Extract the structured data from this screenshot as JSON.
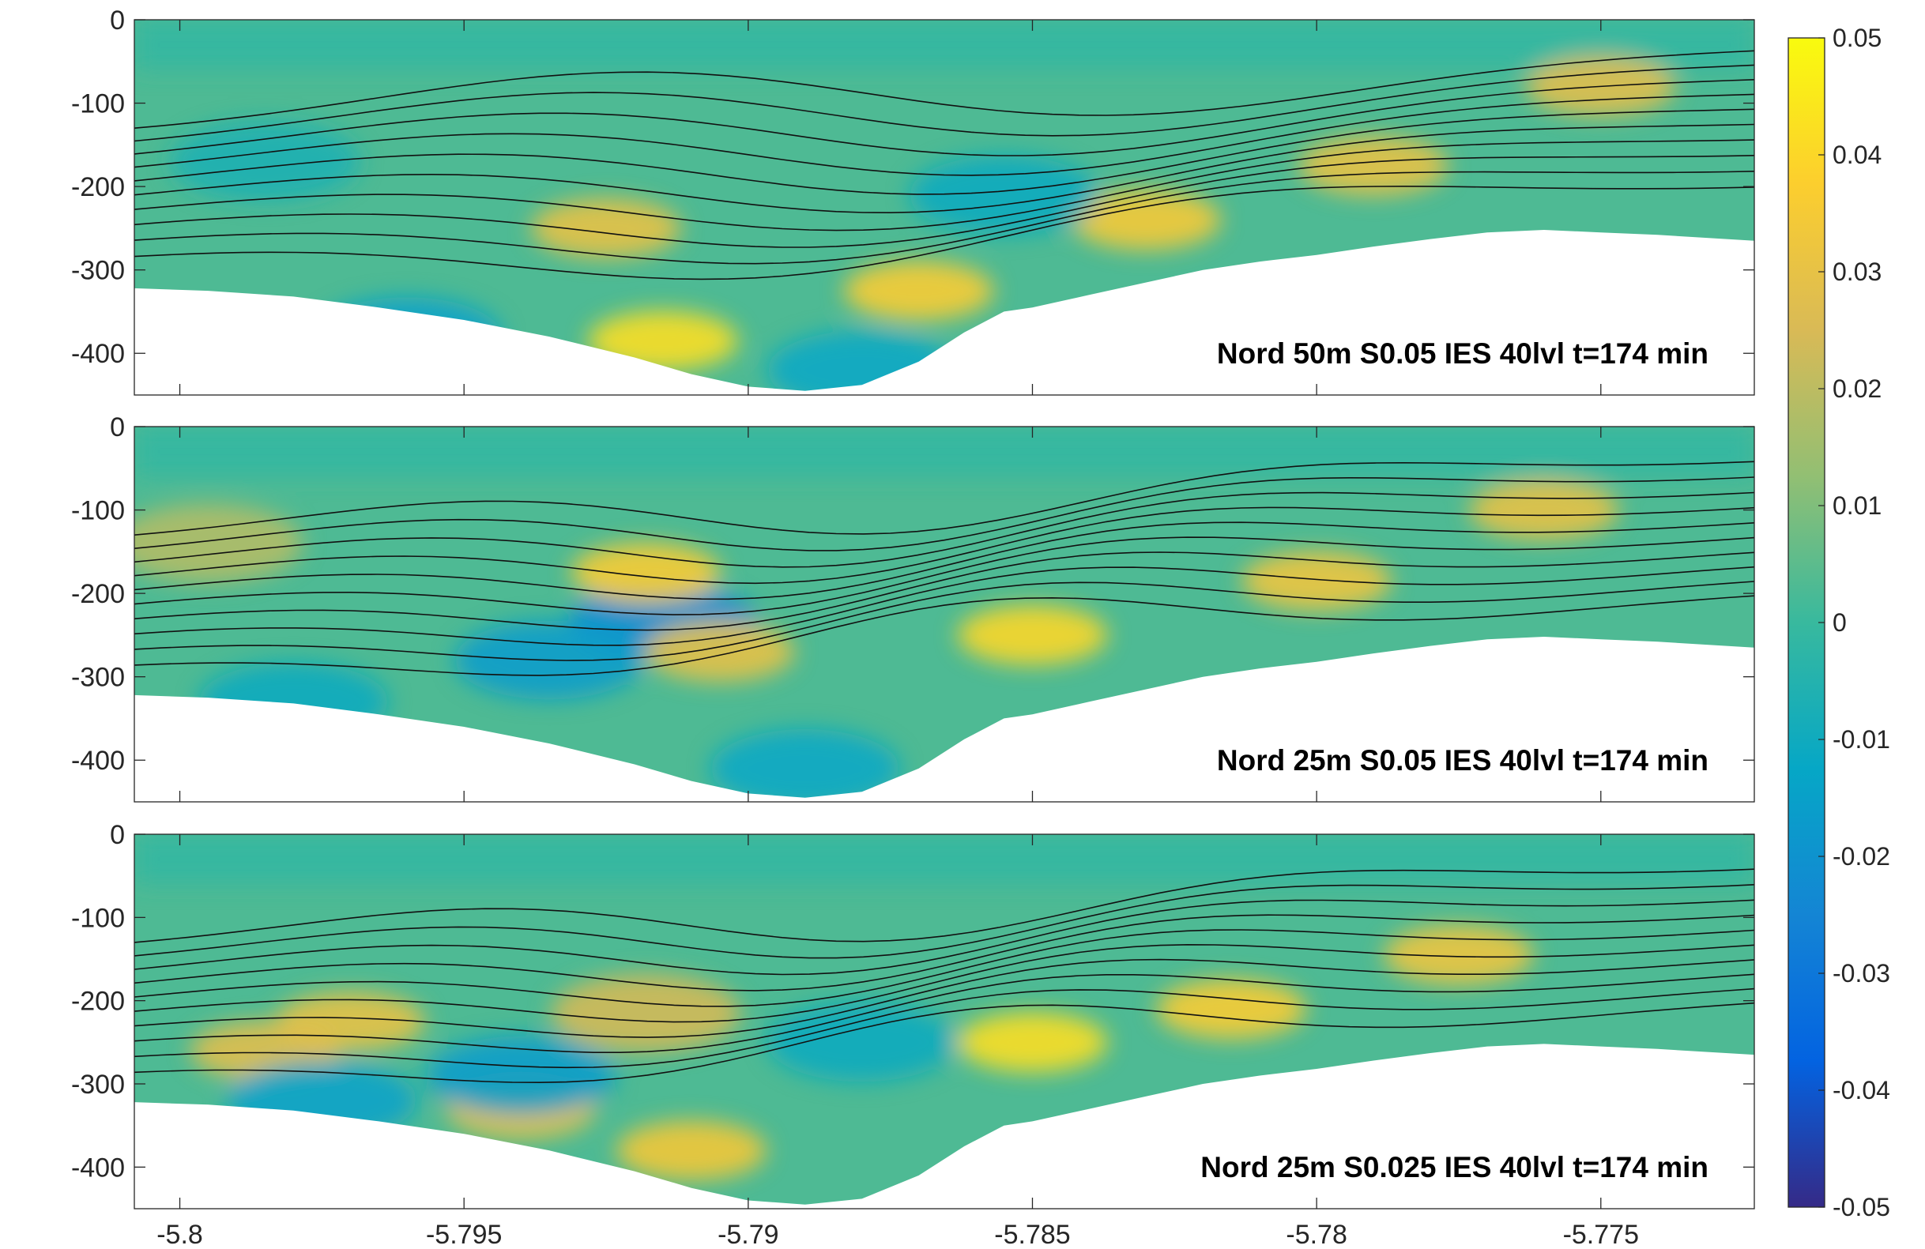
{
  "chart_data": {
    "type": "heatmap",
    "panels": [
      {
        "label": "Nord 50m S0.05 IES 40lvl t=174 min",
        "blobs": [
          {
            "x": -5.7915,
            "y": -385,
            "v": 0.042
          },
          {
            "x": -5.787,
            "y": -325,
            "v": 0.036
          },
          {
            "x": -5.7925,
            "y": -250,
            "v": 0.03
          },
          {
            "x": -5.783,
            "y": -240,
            "v": 0.035
          },
          {
            "x": -5.779,
            "y": -175,
            "v": 0.03
          },
          {
            "x": -5.775,
            "y": -80,
            "v": 0.028
          },
          {
            "x": -5.796,
            "y": -380,
            "v": -0.014
          },
          {
            "x": -5.788,
            "y": -420,
            "v": -0.012
          },
          {
            "x": -5.7855,
            "y": -210,
            "v": -0.01
          },
          {
            "x": -5.7985,
            "y": -170,
            "v": -0.006
          }
        ]
      },
      {
        "label": "Nord 25m S0.05 IES 40lvl t=174 min",
        "blobs": [
          {
            "x": -5.7915,
            "y": -235,
            "v": -0.022
          },
          {
            "x": -5.7935,
            "y": -280,
            "v": -0.016
          },
          {
            "x": -5.798,
            "y": -330,
            "v": -0.01
          },
          {
            "x": -5.7905,
            "y": -270,
            "v": 0.03
          },
          {
            "x": -5.7918,
            "y": -175,
            "v": 0.036
          },
          {
            "x": -5.785,
            "y": -250,
            "v": 0.04
          },
          {
            "x": -5.78,
            "y": -185,
            "v": 0.032
          },
          {
            "x": -5.776,
            "y": -100,
            "v": 0.03
          },
          {
            "x": -5.789,
            "y": -410,
            "v": -0.012
          },
          {
            "x": -5.7995,
            "y": -140,
            "v": 0.018
          }
        ]
      },
      {
        "label": "Nord 25m S0.025 IES 40lvl t=174 min",
        "blobs": [
          {
            "x": -5.785,
            "y": -250,
            "v": 0.042
          },
          {
            "x": -5.7815,
            "y": -210,
            "v": 0.036
          },
          {
            "x": -5.7775,
            "y": -145,
            "v": 0.032
          },
          {
            "x": -5.797,
            "y": -225,
            "v": 0.03
          },
          {
            "x": -5.7985,
            "y": -260,
            "v": 0.028
          },
          {
            "x": -5.794,
            "y": -330,
            "v": 0.03
          },
          {
            "x": -5.791,
            "y": -380,
            "v": 0.034
          },
          {
            "x": -5.7918,
            "y": -215,
            "v": 0.024
          },
          {
            "x": -5.794,
            "y": -290,
            "v": -0.016
          },
          {
            "x": -5.7975,
            "y": -320,
            "v": -0.014
          },
          {
            "x": -5.788,
            "y": -250,
            "v": -0.01
          }
        ]
      }
    ],
    "x_ticks": [
      -5.8,
      -5.795,
      -5.79,
      -5.785,
      -5.78,
      -5.775
    ],
    "x_tick_labels": [
      "-5.8",
      "-5.795",
      "-5.79",
      "-5.785",
      "-5.78",
      "-5.775"
    ],
    "xlim": [
      -5.8008,
      -5.7723
    ],
    "y_ticks": [
      0,
      -100,
      -200,
      -300,
      -400
    ],
    "y_tick_labels": [
      "0",
      "-100",
      "-200",
      "-300",
      "-400"
    ],
    "ylim": [
      -450,
      0
    ],
    "colorbar": {
      "range": [
        -0.05,
        0.05
      ],
      "ticks": [
        0.05,
        0.04,
        0.03,
        0.02,
        0.01,
        0,
        -0.01,
        -0.02,
        -0.03,
        -0.04,
        -0.05
      ],
      "tick_labels": [
        "0.05",
        "0.04",
        "0.03",
        "0.02",
        "0.01",
        "0",
        "-0.01",
        "-0.02",
        "-0.03",
        "-0.04",
        "-0.05"
      ],
      "colormap": "parula",
      "colors": [
        "#352a87",
        "#0363e1",
        "#1485d4",
        "#06a7c6",
        "#38b99e",
        "#92bf73",
        "#d9ba56",
        "#fcce2e",
        "#f9fb0e"
      ]
    },
    "seafloor": {
      "x": [
        -5.8008,
        -5.7995,
        -5.798,
        -5.7965,
        -5.795,
        -5.7935,
        -5.792,
        -5.791,
        -5.79,
        -5.789,
        -5.788,
        -5.787,
        -5.7862,
        -5.7855,
        -5.785,
        -5.784,
        -5.783,
        -5.782,
        -5.781,
        -5.78,
        -5.779,
        -5.778,
        -5.777,
        -5.776,
        -5.775,
        -5.774,
        -5.7723
      ],
      "depth": [
        -322,
        -325,
        -332,
        -345,
        -360,
        -380,
        -405,
        -425,
        -440,
        -445,
        -438,
        -410,
        -375,
        -350,
        -345,
        -330,
        -315,
        -300,
        -290,
        -282,
        -272,
        -263,
        -255,
        -252,
        -255,
        -258,
        -265
      ]
    },
    "surface_background": -0.002,
    "background_field": 0.003
  }
}
